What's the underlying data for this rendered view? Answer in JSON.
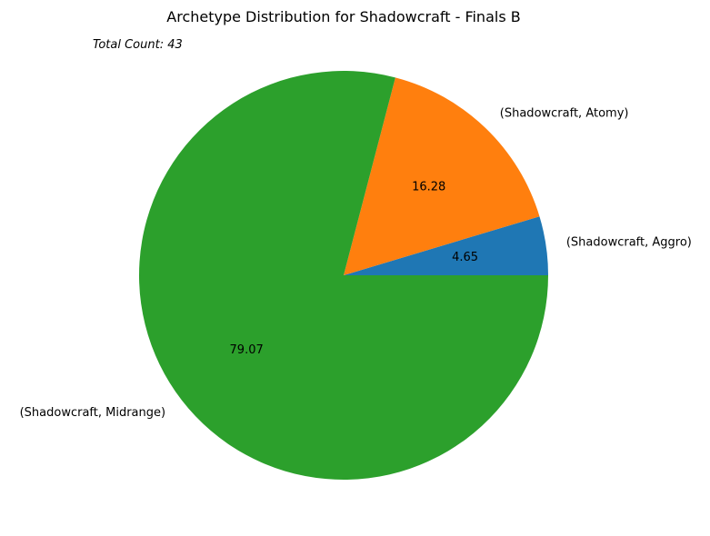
{
  "chart_data": {
    "type": "pie",
    "title": "Archetype Distribution for Shadowcraft - Finals B",
    "annotation": "Total Count: 43",
    "slices": [
      {
        "label": "(Shadowcraft, Aggro)",
        "value": 4.65,
        "display": "4.65",
        "color": "#1f77b4"
      },
      {
        "label": "(Shadowcraft, Atomy)",
        "value": 16.28,
        "display": "16.28",
        "color": "#ff7f0e"
      },
      {
        "label": "(Shadowcraft, Midrange)",
        "value": 79.07,
        "display": "79.07",
        "color": "#2ca02c"
      }
    ],
    "start_angle_deg": 0,
    "direction": "counterclockwise"
  }
}
